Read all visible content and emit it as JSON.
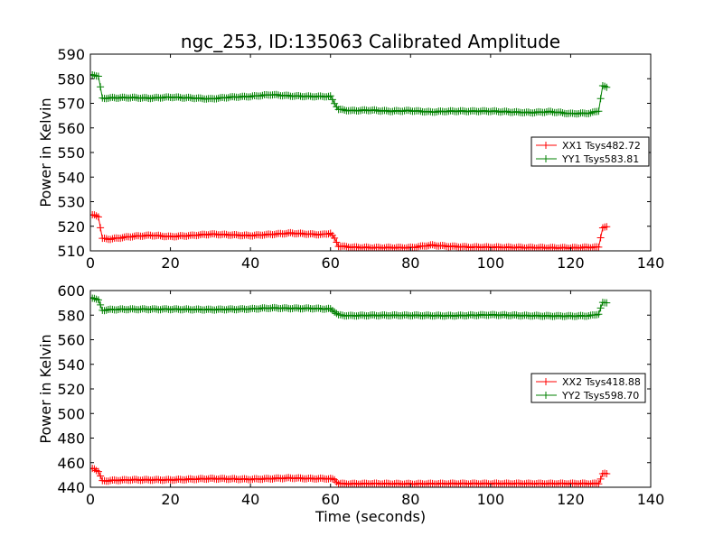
{
  "figure": {
    "title": "ngc_253, ID:135063 Calibrated Amplitude",
    "xlabel": "Time (seconds)"
  },
  "chart_data": [
    {
      "type": "line",
      "title": "ngc_253, ID:135063 Calibrated Amplitude",
      "xlabel": "",
      "ylabel": "Power in Kelvin",
      "xlim": [
        0,
        140
      ],
      "ylim": [
        510,
        590
      ],
      "xticks": [
        0,
        20,
        40,
        60,
        80,
        100,
        120,
        140
      ],
      "yticks": [
        510,
        520,
        530,
        540,
        550,
        560,
        570,
        580,
        590
      ],
      "grid": false,
      "legend_position": "center-right",
      "markers": "plus",
      "series": [
        {
          "name": "XX1 Tsys482.72",
          "color": "#ff0000",
          "x": [
            0,
            1,
            2,
            3,
            5,
            10,
            15,
            20,
            25,
            30,
            35,
            40,
            45,
            50,
            55,
            58,
            60,
            61,
            62,
            65,
            70,
            80,
            85,
            90,
            95,
            100,
            110,
            120,
            127,
            128,
            129
          ],
          "y": [
            524.5,
            524.5,
            524,
            515,
            514.8,
            515.8,
            516.3,
            515.8,
            516.2,
            516.8,
            516.5,
            516.2,
            516.7,
            517.2,
            516.8,
            516.6,
            517.2,
            515,
            512,
            511.5,
            511.3,
            511.3,
            512.3,
            511.8,
            511.5,
            511.5,
            511.3,
            511.2,
            511.5,
            519.5,
            519.8
          ]
        },
        {
          "name": "YY1 Tsys583.81",
          "color": "#008000",
          "x": [
            0,
            1,
            2,
            3,
            5,
            10,
            15,
            20,
            25,
            30,
            35,
            40,
            45,
            50,
            55,
            60,
            61,
            62,
            65,
            70,
            75,
            80,
            85,
            90,
            100,
            110,
            115,
            120,
            125,
            127,
            128,
            129
          ],
          "y": [
            581.5,
            581.5,
            581,
            572,
            572.2,
            572.3,
            572.1,
            572.5,
            572.2,
            571.8,
            572.5,
            572.8,
            573.5,
            573,
            572.8,
            572.8,
            570,
            567.5,
            567,
            567.2,
            566.8,
            567,
            566.5,
            566.8,
            566.8,
            566.2,
            566.6,
            565.8,
            566,
            567,
            577,
            576.5
          ]
        }
      ]
    },
    {
      "type": "line",
      "xlabel": "Time (seconds)",
      "ylabel": "Power in Kelvin",
      "xlim": [
        0,
        140
      ],
      "ylim": [
        440,
        600
      ],
      "xticks": [
        0,
        20,
        40,
        60,
        80,
        100,
        120,
        140
      ],
      "yticks": [
        440,
        460,
        480,
        500,
        520,
        540,
        560,
        580,
        600
      ],
      "grid": false,
      "legend_position": "center-right",
      "markers": "plus",
      "series": [
        {
          "name": "XX2 Tsys418.88",
          "color": "#ff0000",
          "x": [
            0,
            1,
            2,
            3,
            5,
            10,
            20,
            30,
            40,
            50,
            55,
            60,
            61,
            62,
            65,
            70,
            80,
            90,
            100,
            110,
            120,
            127,
            128,
            129
          ],
          "y": [
            455,
            455,
            453,
            445,
            445.5,
            446,
            446,
            447,
            446.5,
            447.5,
            447,
            447,
            446,
            443,
            442.8,
            443,
            442.8,
            443,
            443,
            443,
            443,
            443,
            451,
            451
          ]
        },
        {
          "name": "YY2 Tsys598.70",
          "color": "#008000",
          "x": [
            0,
            1,
            2,
            3,
            5,
            10,
            20,
            30,
            40,
            45,
            50,
            55,
            60,
            61,
            62,
            65,
            70,
            80,
            90,
            100,
            110,
            120,
            125,
            127,
            128,
            129
          ],
          "y": [
            594,
            594,
            592,
            584,
            584.5,
            584.8,
            584.8,
            584.5,
            585,
            585.8,
            585.5,
            585.5,
            585,
            583,
            580,
            579.5,
            579.8,
            579.8,
            579.5,
            580.2,
            579.5,
            579.2,
            579.5,
            581,
            590,
            590
          ]
        }
      ]
    }
  ]
}
